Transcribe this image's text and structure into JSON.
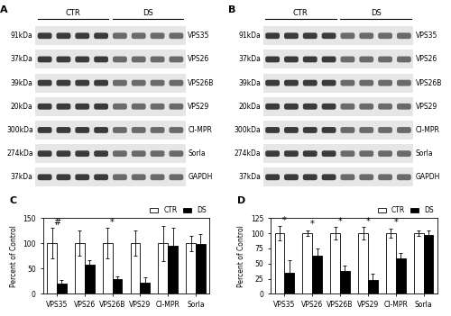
{
  "blots": [
    {
      "panel": "A",
      "groups": [
        "CTR",
        "DS"
      ],
      "rows": [
        {
          "size": "91kDa",
          "name": "VPS35"
        },
        {
          "size": "37kDa",
          "name": "VPS26"
        },
        {
          "size": "39kDa",
          "name": "VPS26B"
        },
        {
          "size": "20kDa",
          "name": "VPS29"
        },
        {
          "size": "300kDa",
          "name": "CI-MPR"
        },
        {
          "size": "274kDa",
          "name": "Sorla"
        },
        {
          "size": "37kDa",
          "name": "GAPDH"
        }
      ]
    },
    {
      "panel": "B",
      "groups": [
        "CTR",
        "DS"
      ],
      "rows": [
        {
          "size": "91kDa",
          "name": "VPS35"
        },
        {
          "size": "37kDa",
          "name": "VPS26"
        },
        {
          "size": "39kDa",
          "name": "VPS26B"
        },
        {
          "size": "20kDa",
          "name": "VPS29"
        },
        {
          "size": "300kDa",
          "name": "CI-MPR"
        },
        {
          "size": "274kDa",
          "name": "Sorla"
        },
        {
          "size": "37kDa",
          "name": "GAPDH"
        }
      ]
    }
  ],
  "chart_data": [
    {
      "type": "bar",
      "panel": "C",
      "y_label": "Percent of Control",
      "categories": [
        "VPS35",
        "VPS26",
        "VPS26B",
        "VPS29",
        "CI-MPR",
        "Sorla"
      ],
      "series": [
        {
          "name": "CTR",
          "color": "#ffffff",
          "values": [
            100,
            100,
            100,
            100,
            100,
            100
          ],
          "error": [
            30,
            25,
            30,
            25,
            35,
            15
          ]
        },
        {
          "name": "DS",
          "color": "#000000",
          "values": [
            20,
            57,
            30,
            23,
            95,
            98
          ],
          "error": [
            8,
            10,
            5,
            10,
            35,
            20
          ]
        }
      ],
      "ylim": [
        0,
        150
      ],
      "yticks": [
        0,
        50,
        100,
        150
      ],
      "legend": "upper right",
      "annotations": [
        {
          "text": "#",
          "category": "VPS35"
        },
        {
          "text": "*",
          "category": "VPS26B"
        }
      ]
    },
    {
      "type": "bar",
      "panel": "D",
      "y_label": "Percent of Control",
      "categories": [
        "VPS35",
        "VPS26",
        "VPS26B",
        "VPS29",
        "CI-MPR",
        "Sorla"
      ],
      "series": [
        {
          "name": "CTR",
          "color": "#ffffff",
          "values": [
            100,
            100,
            100,
            100,
            100,
            100
          ],
          "error": [
            12,
            5,
            10,
            10,
            8,
            5
          ]
        },
        {
          "name": "DS",
          "color": "#000000",
          "values": [
            35,
            63,
            38,
            23,
            58,
            97
          ],
          "error": [
            20,
            12,
            8,
            10,
            10,
            8
          ]
        }
      ],
      "ylim": [
        0,
        125
      ],
      "yticks": [
        0,
        25,
        50,
        75,
        100,
        125
      ],
      "legend": "upper right",
      "annotations": [
        {
          "text": "*",
          "category": "VPS35"
        },
        {
          "text": "*",
          "category": "VPS26"
        },
        {
          "text": "*",
          "category": "VPS26B"
        },
        {
          "text": "*",
          "category": "VPS29"
        },
        {
          "text": "*",
          "category": "CI-MPR"
        }
      ]
    }
  ]
}
